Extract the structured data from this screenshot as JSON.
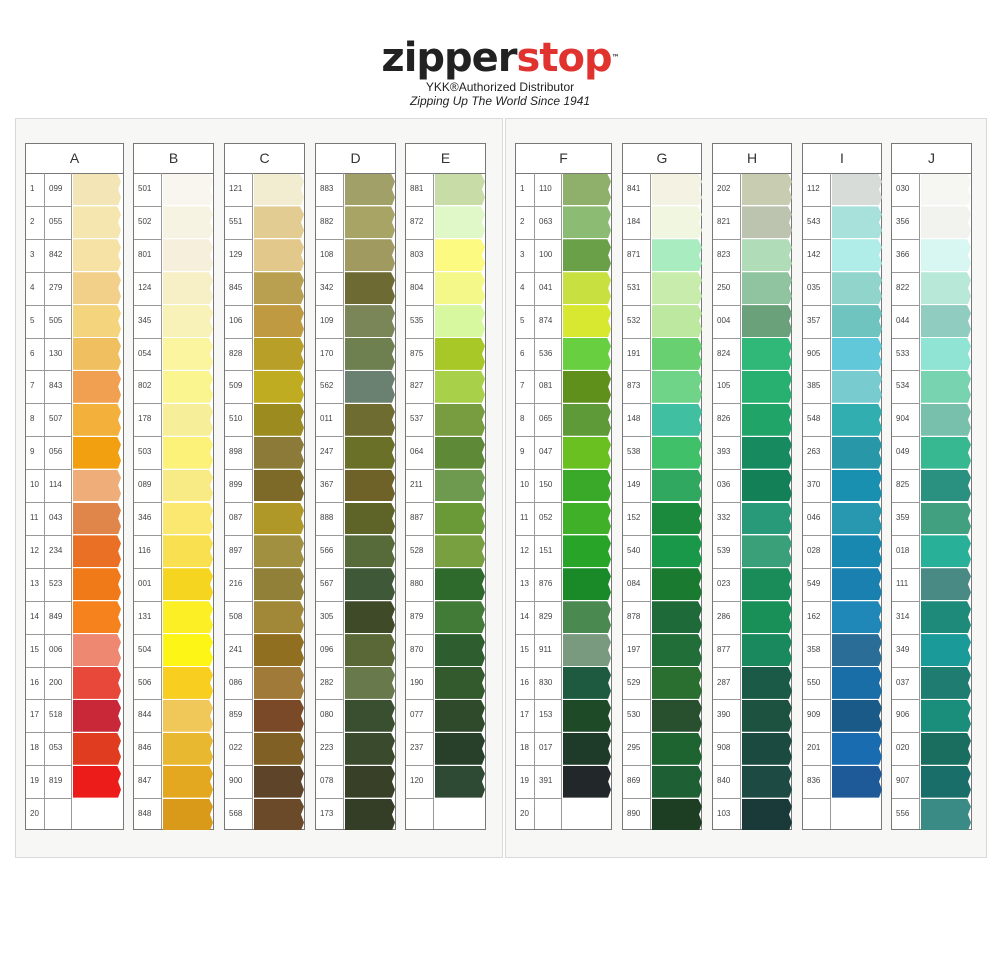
{
  "header": {
    "brand_left": "zipper",
    "brand_right": "stop",
    "trademark": "™",
    "distributor": "YKK®Authorized Distributor",
    "slogan": "Zipping Up The World Since 1941",
    "brand_colors": {
      "dark": "#222222",
      "red": "#e0332f"
    }
  },
  "row_numbers": [
    "1",
    "2",
    "3",
    "4",
    "5",
    "6",
    "7",
    "8",
    "9",
    "10",
    "11",
    "12",
    "13",
    "14",
    "15",
    "16",
    "17",
    "18",
    "19",
    "20"
  ],
  "columns": [
    {
      "letter": "A",
      "codes": [
        "099",
        "055",
        "842",
        "279",
        "505",
        "130",
        "843",
        "507",
        "056",
        "114",
        "043",
        "234",
        "523",
        "849",
        "006",
        "200",
        "518",
        "053",
        "819",
        ""
      ],
      "colors": [
        "#f3e5b5",
        "#f5e6b0",
        "#f6e2a4",
        "#f2d08a",
        "#f4d47c",
        "#f0c060",
        "#f0a050",
        "#f3b03a",
        "#f2a010",
        "#efad7a",
        "#e0864a",
        "#ea7025",
        "#f07a18",
        "#f5821c",
        "#ee8870",
        "#e8483a",
        "#c82838",
        "#e03c20",
        "#ec1c1a",
        ""
      ]
    },
    {
      "letter": "B",
      "codes": [
        "501",
        "502",
        "801",
        "124",
        "345",
        "054",
        "802",
        "178",
        "503",
        "089",
        "346",
        "116",
        "001",
        "131",
        "504",
        "506",
        "844",
        "846",
        "847",
        "848"
      ],
      "colors": [
        "#f8f6ee",
        "#f7f3e2",
        "#f6efdc",
        "#f7efc6",
        "#f8f2b8",
        "#fbf5a0",
        "#fbf590",
        "#f7ee9a",
        "#fcf27a",
        "#f8eb85",
        "#fae870",
        "#f8e050",
        "#f5d520",
        "#fcef25",
        "#fdf515",
        "#f8ce20",
        "#f0c85a",
        "#e8b830",
        "#e3a820",
        "#d89a18"
      ]
    },
    {
      "letter": "C",
      "codes": [
        "121",
        "551",
        "129",
        "845",
        "106",
        "828",
        "509",
        "510",
        "898",
        "899",
        "087",
        "897",
        "216",
        "508",
        "241",
        "086",
        "859",
        "022",
        "900",
        "568"
      ],
      "colors": [
        "#f2ecd0",
        "#e2cc92",
        "#e3c88c",
        "#b8a050",
        "#c09a40",
        "#b8a028",
        "#c0ac20",
        "#9c8c20",
        "#8c7a38",
        "#7e6a28",
        "#b09828",
        "#a09040",
        "#908038",
        "#a08838",
        "#907020",
        "#a07a38",
        "#7a4a28",
        "#806024",
        "#5e4428",
        "#6a4a28"
      ]
    },
    {
      "letter": "D",
      "codes": [
        "883",
        "882",
        "108",
        "342",
        "109",
        "170",
        "562",
        "011",
        "247",
        "367",
        "888",
        "566",
        "567",
        "305",
        "096",
        "282",
        "080",
        "223",
        "078",
        "173"
      ],
      "colors": [
        "#a0a068",
        "#a8a466",
        "#a09a60",
        "#6e6a34",
        "#7a8658",
        "#6e8050",
        "#6a8070",
        "#6e6c30",
        "#6a7028",
        "#6e6228",
        "#5e6428",
        "#566a3a",
        "#3e5838",
        "#3e4a28",
        "#5a6838",
        "#687a4c",
        "#3a4e30",
        "#3a4a2c",
        "#384028",
        "#343e26"
      ]
    },
    {
      "letter": "E",
      "codes": [
        "881",
        "872",
        "803",
        "804",
        "535",
        "875",
        "827",
        "537",
        "064",
        "211",
        "887",
        "528",
        "880",
        "879",
        "870",
        "190",
        "077",
        "237",
        "120",
        ""
      ],
      "colors": [
        "#c8dca8",
        "#e0f8c8",
        "#fcfa80",
        "#f4f888",
        "#d8f8a0",
        "#a8c828",
        "#a8d048",
        "#789c40",
        "#5e8a38",
        "#6e9a50",
        "#6a9a38",
        "#78a040",
        "#2e6a2c",
        "#427a38",
        "#2e5e30",
        "#325a2c",
        "#2e4a2a",
        "#28402a",
        "#2e4a34",
        ""
      ]
    },
    {
      "letter": "F",
      "codes": [
        "110",
        "063",
        "100",
        "041",
        "874",
        "536",
        "081",
        "065",
        "047",
        "150",
        "052",
        "151",
        "876",
        "829",
        "911",
        "830",
        "153",
        "017",
        "391",
        ""
      ],
      "colors": [
        "#8eb06a",
        "#8cbc74",
        "#6aa048",
        "#c8e040",
        "#d8e830",
        "#68d040",
        "#60901c",
        "#5e9a38",
        "#6ac020",
        "#3aa828",
        "#40b028",
        "#28a428",
        "#1a8a28",
        "#4a8a50",
        "#7a9a80",
        "#1e5a40",
        "#1e4a28",
        "#1e3a28",
        "#22282a",
        ""
      ]
    },
    {
      "letter": "G",
      "codes": [
        "841",
        "184",
        "871",
        "531",
        "532",
        "191",
        "873",
        "148",
        "538",
        "149",
        "152",
        "540",
        "084",
        "878",
        "197",
        "529",
        "530",
        "295",
        "869",
        "890"
      ],
      "colors": [
        "#f4f2e2",
        "#f0f6e0",
        "#a8ecc0",
        "#c8ecac",
        "#bce8a0",
        "#68d070",
        "#70d488",
        "#40c0a0",
        "#40c068",
        "#30a860",
        "#1c8a3c",
        "#189848",
        "#1a7a30",
        "#1e6a38",
        "#226e38",
        "#2a6e30",
        "#28502e",
        "#1e6430",
        "#1e6034",
        "#1e3e24"
      ]
    },
    {
      "letter": "H",
      "codes": [
        "202",
        "821",
        "823",
        "250",
        "004",
        "824",
        "105",
        "826",
        "393",
        "036",
        "332",
        "539",
        "023",
        "286",
        "877",
        "287",
        "390",
        "908",
        "840",
        "103"
      ],
      "colors": [
        "#c8ccb0",
        "#bcc4b0",
        "#b0dcb8",
        "#90c4a0",
        "#6aa07a",
        "#30b878",
        "#28b070",
        "#20a468",
        "#188a60",
        "#148058",
        "#289a7a",
        "#3aa07a",
        "#1a8c5a",
        "#189058",
        "#1a8a5e",
        "#1a5a46",
        "#1e5240",
        "#1a4a40",
        "#1e4a44",
        "#1a3a3a"
      ]
    },
    {
      "letter": "I",
      "codes": [
        "112",
        "543",
        "142",
        "035",
        "357",
        "905",
        "385",
        "548",
        "263",
        "370",
        "046",
        "028",
        "549",
        "162",
        "358",
        "550",
        "909",
        "201",
        "836",
        ""
      ],
      "colors": [
        "#d8dcd8",
        "#a8e0dc",
        "#b0ece8",
        "#90d4cc",
        "#70c4c0",
        "#60c8d8",
        "#78ccd0",
        "#30aeb0",
        "#2898a8",
        "#1a90b0",
        "#2898b0",
        "#1888b0",
        "#1a80b0",
        "#2088b8",
        "#2a6e98",
        "#1a6ea8",
        "#1a5a88",
        "#1a6cb0",
        "#1e5a98",
        ""
      ]
    },
    {
      "letter": "J",
      "codes": [
        "030",
        "356",
        "366",
        "822",
        "044",
        "533",
        "534",
        "904",
        "049",
        "825",
        "359",
        "018",
        "111",
        "314",
        "349",
        "037",
        "906",
        "020",
        "907",
        "556"
      ],
      "colors": [
        "#f6f6f2",
        "#f2f2ee",
        "#d8f6f2",
        "#b8e8d8",
        "#90ccc0",
        "#90e4d4",
        "#78d4b0",
        "#78c0ac",
        "#38b890",
        "#2a9080",
        "#40a080",
        "#28b098",
        "#4a8a84",
        "#1e8a7a",
        "#1a9a98",
        "#1e7c70",
        "#1a8e7a",
        "#1a6e60",
        "#1a6e6a",
        "#3a8a86"
      ]
    }
  ]
}
